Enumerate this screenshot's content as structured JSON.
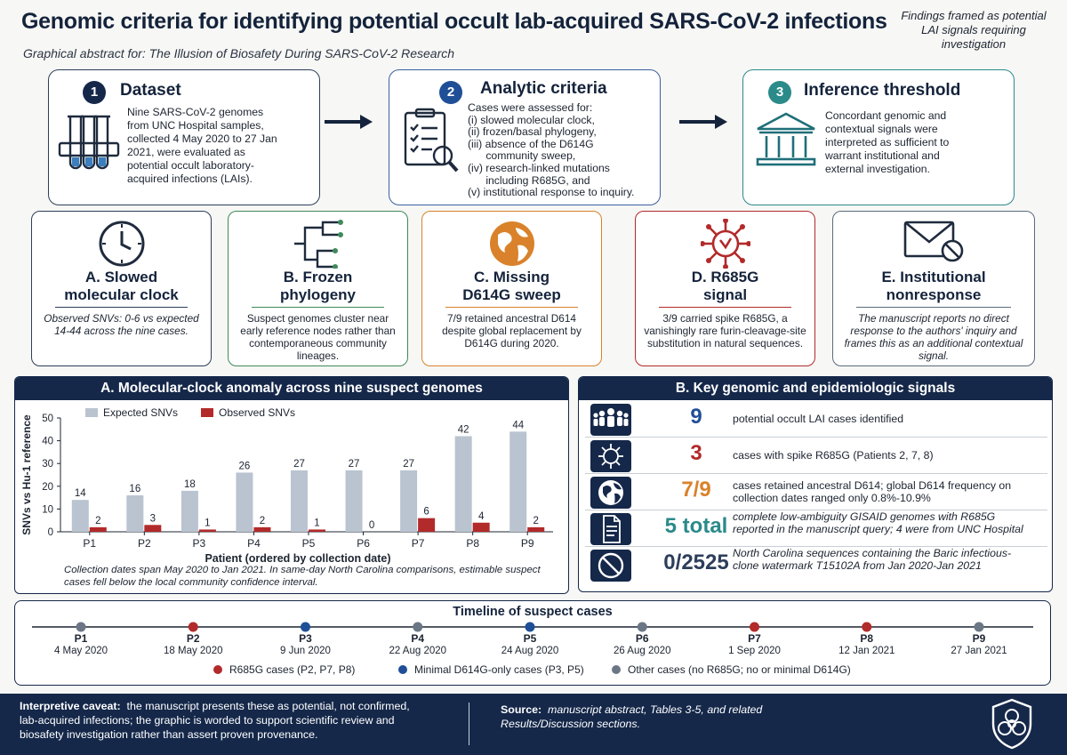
{
  "header": {
    "title": "Genomic criteria for identifying potential occult lab-acquired SARS-CoV-2 infections",
    "subtitle": "Graphical abstract for: The Illusion of Biosafety During SARS-CoV-2 Research",
    "corner_note": "Findings framed as potential LAI signals requiring investigation"
  },
  "steps": [
    {
      "num": "1",
      "title": "Dataset",
      "text": "Nine SARS-CoV-2 genomes from UNC Hospital samples, collected 4 May 2020 to 27 Jan 2021, were evaluated as potential occult laboratory-acquired infections (LAIs).",
      "icon": "test-tubes-icon"
    },
    {
      "num": "2",
      "title": "Analytic criteria",
      "text_lines": [
        "Cases were assessed for:",
        "(i) slowed molecular clock,",
        "(ii) frozen/basal phylogeny,",
        "(iii) absence of the D614G",
        "      community sweep,",
        "(iv) research-linked mutations",
        "      including R685G, and",
        "(v) institutional response to inquiry."
      ],
      "icon": "checklist-magnifier-icon"
    },
    {
      "num": "3",
      "title": "Inference threshold",
      "text": "Concordant genomic and contextual signals were interpreted as sufficient to warrant institutional and external investigation.",
      "icon": "institution-building-icon"
    }
  ],
  "cards": [
    {
      "title_lines": [
        "A.  Slowed",
        "molecular clock"
      ],
      "text": "Observed SNVs: 0-6 vs expected 14-44 across the nine cases.",
      "color": "#2c3e5a",
      "icon": "clock-icon"
    },
    {
      "title_lines": [
        "B.  Frozen",
        "phylogeny"
      ],
      "text": "Suspect genomes cluster near early reference nodes rather than contemporaneous community lineages.",
      "color": "#3f8a5a",
      "icon": "phylogeny-tree-icon"
    },
    {
      "title_lines": [
        "C.  Missing",
        "D614G sweep"
      ],
      "text": "7/9 retained ancestral D614 despite global replacement by D614G during 2020.",
      "color": "#d9822b",
      "icon": "globe-icon"
    },
    {
      "title_lines": [
        "D.  R685G",
        "signal"
      ],
      "text": "3/9 carried spike R685G, a vanishingly rare furin-cleavage-site substitution in natural sequences.",
      "color": "#b22a2a",
      "icon": "virus-icon"
    },
    {
      "title_lines": [
        "E.  Institutional",
        "nonresponse"
      ],
      "text": "The manuscript reports no direct response to the authors' inquiry and frames this as an additional contextual signal.",
      "color": "#5a6b7d",
      "icon": "envelope-blocked-icon"
    }
  ],
  "chart_panel": {
    "title": "A. Molecular-clock anomaly across nine suspect genomes",
    "note": "Collection dates span May 2020 to Jan 2021. In same-day North Carolina comparisons, estimable suspect cases fell below the local community confidence interval."
  },
  "chart_data": {
    "type": "bar",
    "categories": [
      "P1",
      "P2",
      "P3",
      "P4",
      "P5",
      "P6",
      "P7",
      "P8",
      "P9"
    ],
    "series": [
      {
        "name": "Expected SNVs",
        "values": [
          14,
          16,
          18,
          26,
          27,
          27,
          27,
          42,
          44
        ],
        "color": "#b9c4d0"
      },
      {
        "name": "Observed SNVs",
        "values": [
          2,
          3,
          1,
          2,
          1,
          0,
          6,
          4,
          2
        ],
        "color": "#b22a2a"
      }
    ],
    "xlabel": "Patient (ordered by collection date)",
    "ylabel": "SNVs vs Hu-1 reference",
    "ylim": [
      0,
      50
    ],
    "yticks": [
      0,
      10,
      20,
      30,
      40,
      50
    ],
    "legend": "top-left",
    "grid": false
  },
  "signals_panel": {
    "title": "B. Key genomic and epidemiologic signals",
    "rows": [
      {
        "value": "9",
        "text": "potential occult LAI cases identified",
        "color": "#1f4f96",
        "icon": "people-group-icon",
        "italic": false
      },
      {
        "value": "3",
        "text": "cases with spike R685G (Patients 2, 7, 8)",
        "color": "#b22a2a",
        "icon": "virus-icon",
        "italic": false
      },
      {
        "value": "7/9",
        "text": "cases retained ancestral D614; global D614 frequency on collection dates ranged only 0.8%-10.9%",
        "color": "#d9822b",
        "icon": "globe-icon",
        "italic": false
      },
      {
        "value": "5 total",
        "text": "complete low-ambiguity GISAID genomes with R685G reported in the manuscript query; 4 were from UNC Hospital",
        "color": "#2b8a8a",
        "icon": "document-icon",
        "italic": true
      },
      {
        "value": "0/2525",
        "text": "North Carolina sequences containing the Baric infectious-clone watermark T15102A from Jan 2020-Jan 2021",
        "color": "#2c3e5a",
        "icon": "prohibited-icon",
        "italic": true
      }
    ]
  },
  "timeline": {
    "title": "Timeline of suspect cases",
    "events": [
      {
        "id": "P1",
        "date": "4 May 2020",
        "category": "other"
      },
      {
        "id": "P2",
        "date": "18 May 2020",
        "category": "r685g"
      },
      {
        "id": "P3",
        "date": "9 Jun 2020",
        "category": "d614g"
      },
      {
        "id": "P4",
        "date": "22 Aug 2020",
        "category": "other"
      },
      {
        "id": "P5",
        "date": "24 Aug 2020",
        "category": "d614g"
      },
      {
        "id": "P6",
        "date": "26 Aug 2020",
        "category": "other"
      },
      {
        "id": "P7",
        "date": "1 Sep 2020",
        "category": "r685g"
      },
      {
        "id": "P8",
        "date": "12 Jan 2021",
        "category": "r685g"
      },
      {
        "id": "P9",
        "date": "27 Jan 2021",
        "category": "other"
      }
    ],
    "legend": [
      {
        "label": "R685G cases (P2, P7, P8)",
        "color": "#b22a2a"
      },
      {
        "label": "Minimal D614G-only cases (P3, P5)",
        "color": "#1f4f96"
      },
      {
        "label": "Other cases (no R685G; no or minimal D614G)",
        "color": "#6b7785"
      }
    ]
  },
  "footer": {
    "caveat_label": "Interpretive caveat:",
    "caveat_text": "the manuscript presents these as potential, not confirmed, lab-acquired infections; the graphic is worded to support scientific review and biosafety investigation rather than assert proven provenance.",
    "source_label": "Source:",
    "source_text": "manuscript abstract, Tables 3-5, and related Results/Discussion sections.",
    "logo_icon": "biohazard-shield-icon"
  }
}
